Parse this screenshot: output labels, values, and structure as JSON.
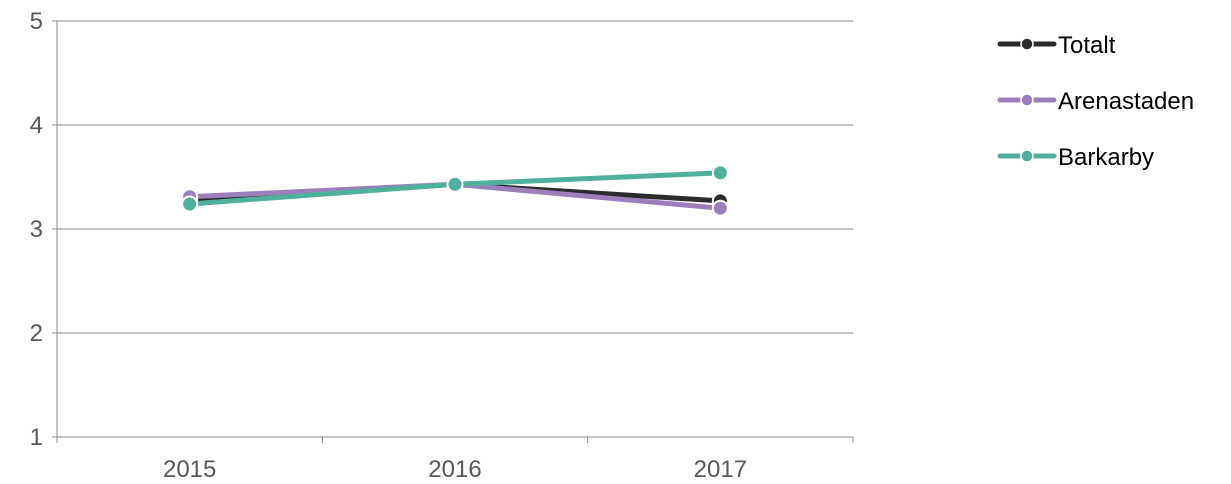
{
  "chart_data": {
    "type": "line",
    "categories": [
      "2015",
      "2016",
      "2017"
    ],
    "ylim": [
      1,
      5
    ],
    "yticks": [
      "1",
      "2",
      "3",
      "4",
      "5"
    ],
    "grid": true,
    "legend_position": "top-right",
    "series": [
      {
        "name": "Totalt",
        "color": "#2b2b2b",
        "values": [
          3.27,
          3.43,
          3.27
        ]
      },
      {
        "name": "Arenastaden",
        "color": "#9b7fbd",
        "values": [
          3.31,
          3.43,
          3.2
        ]
      },
      {
        "name": "Barkarby",
        "color": "#4fb09c",
        "values": [
          3.24,
          3.43,
          3.54
        ]
      }
    ]
  }
}
